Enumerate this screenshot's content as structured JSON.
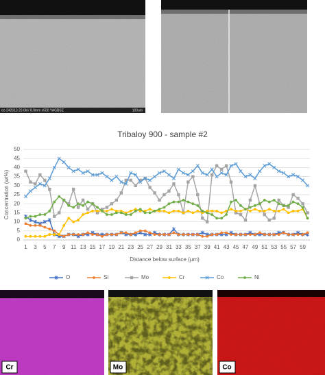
{
  "figure": {
    "micrograph_caption": "ez-242613 20.0kV 8.9mm x500 YAGBSE",
    "scale_bar": "100um",
    "map_labels": [
      "Cr",
      "Mo",
      "Co"
    ]
  },
  "chart_data": {
    "type": "line",
    "title": "Tribaloy 900 - sample #2",
    "x_label": "Distance below surface (µm)",
    "y_label": "Concentration (wt%)",
    "categories": [
      "1",
      null,
      "3",
      null,
      "5",
      null,
      "7",
      null,
      "9",
      null,
      "11",
      null,
      "13",
      null,
      "15",
      null,
      "17",
      null,
      "19",
      null,
      "21",
      null,
      "23",
      null,
      "25",
      null,
      "27",
      null,
      "29",
      null,
      "31",
      null,
      "33",
      null,
      "35",
      null,
      "37",
      null,
      "39",
      null,
      "41",
      null,
      "43",
      null,
      "45",
      null,
      "47",
      null,
      "49",
      null,
      "51",
      null,
      "53",
      null,
      "55",
      null,
      "57",
      null,
      "59",
      null
    ],
    "ylim": [
      0,
      50
    ],
    "yticks": [
      0,
      5,
      10,
      15,
      20,
      25,
      30,
      35,
      40,
      45,
      50
    ],
    "grid": true,
    "legend": "bottom",
    "series": [
      {
        "name": "O",
        "color": "#4472c4",
        "marker": "star",
        "values": [
          13,
          11,
          10,
          9,
          10,
          11,
          3,
          2,
          2,
          3,
          3,
          2,
          3,
          3,
          4,
          3,
          3,
          3,
          3,
          3,
          4,
          3,
          3,
          3,
          4,
          3,
          3,
          4,
          3,
          3,
          3,
          6,
          3,
          3,
          3,
          3,
          3,
          4,
          3,
          3,
          3,
          3,
          3,
          4,
          3,
          3,
          3,
          4,
          3,
          3,
          3,
          3,
          3,
          4,
          4,
          3,
          3,
          4,
          3,
          3
        ]
      },
      {
        "name": "Si",
        "color": "#ed7d31",
        "marker": "circle",
        "values": [
          9,
          8,
          8,
          8,
          7,
          6,
          5,
          3,
          2,
          3,
          3,
          3,
          3,
          4,
          3,
          3,
          2,
          3,
          3,
          3,
          4,
          4,
          3,
          4,
          5,
          5,
          4,
          3,
          3,
          3,
          3,
          4,
          3,
          3,
          3,
          3,
          3,
          2,
          2,
          3,
          3,
          4,
          4,
          3,
          3,
          3,
          3,
          3,
          3,
          4,
          3,
          3,
          3,
          3,
          4,
          3,
          3,
          3,
          3,
          4
        ]
      },
      {
        "name": "Mo",
        "color": "#a5a5a5",
        "marker": "square",
        "values": [
          38,
          32,
          31,
          36,
          33,
          28,
          13,
          15,
          22,
          20,
          28,
          18,
          22,
          17,
          20,
          15,
          17,
          18,
          20,
          22,
          26,
          33,
          33,
          30,
          33,
          34,
          29,
          26,
          22,
          25,
          27,
          31,
          25,
          15,
          32,
          35,
          25,
          12,
          10,
          36,
          41,
          39,
          41,
          32,
          15,
          14,
          11,
          22,
          30,
          20,
          14,
          11,
          12,
          22,
          19,
          18,
          25,
          23,
          20,
          15
        ]
      },
      {
        "name": "Cr",
        "color": "#ffc000",
        "marker": "circle",
        "values": [
          2,
          2,
          2,
          2,
          2,
          3,
          3,
          3,
          8,
          12,
          10,
          11,
          14,
          15,
          16,
          16,
          16,
          16,
          17,
          16,
          16,
          15,
          16,
          17,
          16,
          16,
          17,
          16,
          16,
          16,
          15,
          16,
          16,
          15,
          16,
          15,
          16,
          15,
          16,
          16,
          16,
          15,
          16,
          17,
          16,
          16,
          17,
          16,
          17,
          16,
          16,
          17,
          16,
          16,
          17,
          15,
          16,
          16,
          17,
          12
        ]
      },
      {
        "name": "Co",
        "color": "#5b9bd5",
        "marker": "x",
        "values": [
          24,
          27,
          29,
          31,
          30,
          34,
          40,
          45,
          43,
          40,
          38,
          39,
          37,
          38,
          36,
          36,
          37,
          35,
          33,
          35,
          32,
          31,
          37,
          36,
          32,
          34,
          33,
          35,
          37,
          38,
          36,
          34,
          39,
          37,
          36,
          38,
          41,
          37,
          36,
          39,
          35,
          37,
          36,
          41,
          42,
          38,
          35,
          36,
          34,
          38,
          41,
          42,
          40,
          38,
          37,
          35,
          36,
          35,
          33,
          30
        ]
      },
      {
        "name": "Ni",
        "color": "#70ad47",
        "marker": "circle",
        "values": [
          12,
          13,
          13,
          14,
          14,
          16,
          21,
          24,
          22,
          19,
          18,
          20,
          19,
          21,
          20,
          18,
          16,
          14,
          14,
          15,
          15,
          14,
          14,
          16,
          17,
          15,
          15,
          16,
          17,
          18,
          20,
          21,
          21,
          22,
          21,
          20,
          19,
          16,
          15,
          14,
          12,
          12,
          14,
          21,
          22,
          19,
          17,
          18,
          19,
          20,
          22,
          21,
          22,
          20,
          19,
          19,
          21,
          20,
          18,
          12
        ]
      }
    ]
  }
}
